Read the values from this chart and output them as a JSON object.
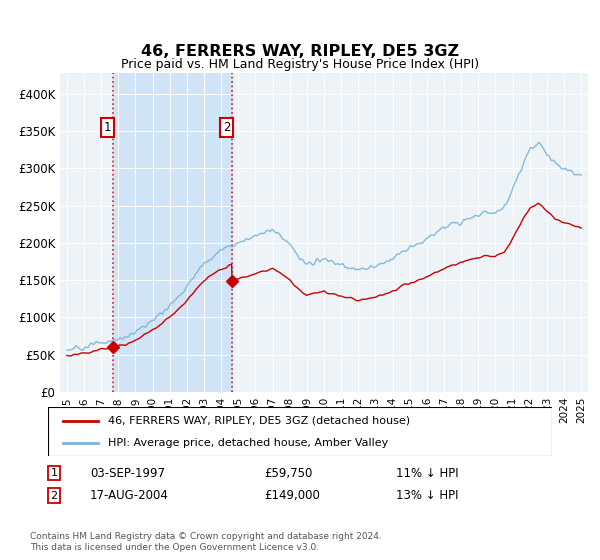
{
  "title": "46, FERRERS WAY, RIPLEY, DE5 3GZ",
  "subtitle": "Price paid vs. HM Land Registry's House Price Index (HPI)",
  "legend_line1": "46, FERRERS WAY, RIPLEY, DE5 3GZ (detached house)",
  "legend_line2": "HPI: Average price, detached house, Amber Valley",
  "annotation1_date": "03-SEP-1997",
  "annotation1_price": "£59,750",
  "annotation1_hpi": "11% ↓ HPI",
  "annotation1_year": 1997.67,
  "annotation1_value": 59750,
  "annotation2_date": "17-AUG-2004",
  "annotation2_price": "£149,000",
  "annotation2_hpi": "13% ↓ HPI",
  "annotation2_year": 2004.62,
  "annotation2_value": 149000,
  "hpi_color": "#7ab4d8",
  "price_color": "#cc0000",
  "shade_color": "#d0e4f5",
  "bg_color": "#eef3f8",
  "footer": "Contains HM Land Registry data © Crown copyright and database right 2024.\nThis data is licensed under the Open Government Licence v3.0.",
  "ylim_min": 0,
  "ylim_max": 420000,
  "yticks": [
    0,
    50000,
    100000,
    150000,
    200000,
    250000,
    300000,
    350000,
    400000
  ],
  "ytick_labels": [
    "£0",
    "£50K",
    "£100K",
    "£150K",
    "£200K",
    "£250K",
    "£300K",
    "£350K",
    "£400K"
  ],
  "xmin": 1994.6,
  "xmax": 2025.4
}
